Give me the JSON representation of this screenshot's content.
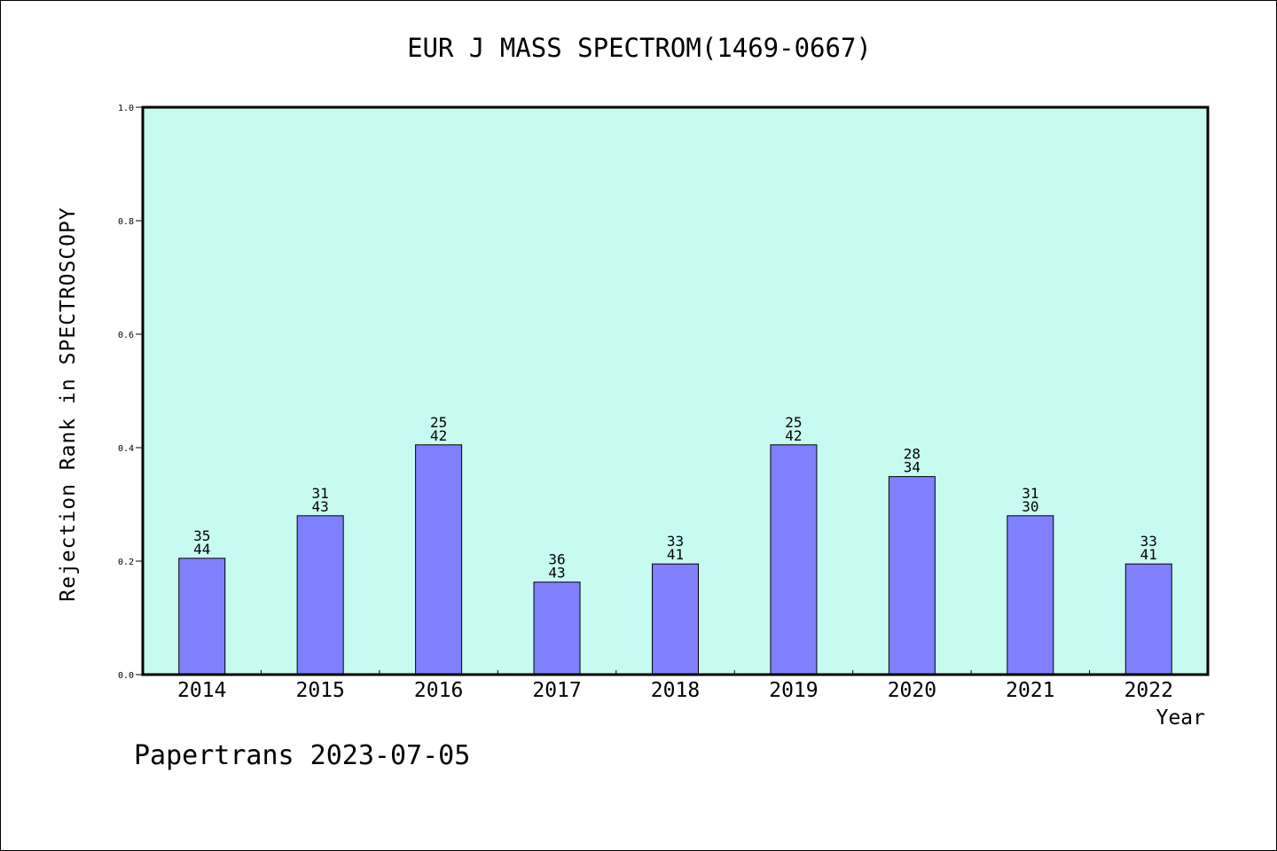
{
  "chart_data": {
    "type": "bar",
    "title": "EUR J MASS SPECTROM(1469-0667)",
    "xlabel": "Year",
    "ylabel": "Rejection Rank in SPECTROSCOPY",
    "categories": [
      "2014",
      "2015",
      "2016",
      "2017",
      "2018",
      "2019",
      "2020",
      "2021",
      "2022"
    ],
    "values": [
      0.205,
      0.28,
      0.405,
      0.163,
      0.195,
      0.405,
      0.349,
      0.28,
      0.195
    ],
    "labels_top": [
      "35",
      "31",
      "25",
      "36",
      "33",
      "25",
      "28",
      "31",
      "33"
    ],
    "labels_bottom": [
      "44",
      "43",
      "42",
      "43",
      "41",
      "42",
      "34",
      "30",
      "41"
    ],
    "ylim": [
      0,
      1.0
    ],
    "yticks": [
      "0.0",
      "0.2",
      "0.4",
      "0.6",
      "0.8",
      "1.0"
    ],
    "grid": false,
    "colors": {
      "plot_background": "#c8fbef",
      "bar_fill": "#8080ff",
      "bar_stroke": "#000000"
    }
  },
  "footer": "Papertrans 2023-07-05"
}
